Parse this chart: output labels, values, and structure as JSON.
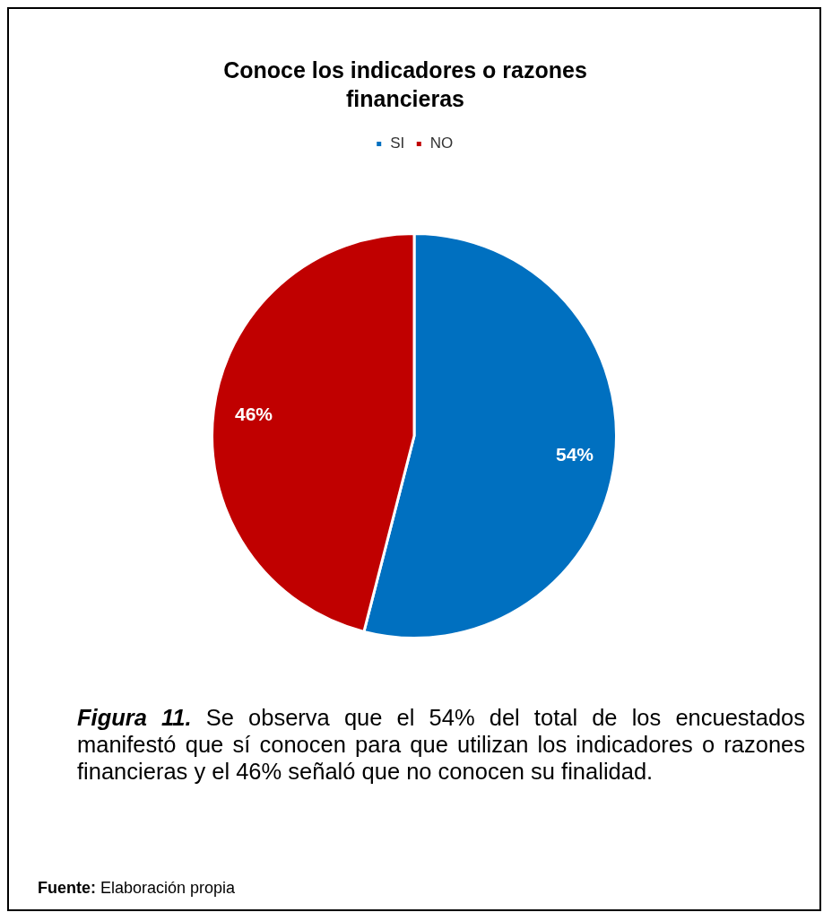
{
  "chart_data": {
    "type": "pie",
    "title": "Conoce los indicadores o razones financieras",
    "categories": [
      "SI",
      "NO"
    ],
    "values": [
      54,
      46
    ],
    "colors": [
      "#0070c0",
      "#c00000"
    ],
    "value_labels": [
      "54%",
      "46%"
    ],
    "legend": "top",
    "annotations": [
      "Figura 11. Se observa que el 54% del total de los encuestados manifestó que sí conocen para que utilizan los indicadores o razones financieras y el 46% señaló que no conocen su finalidad.",
      "Fuente: Elaboración propia"
    ]
  }
}
